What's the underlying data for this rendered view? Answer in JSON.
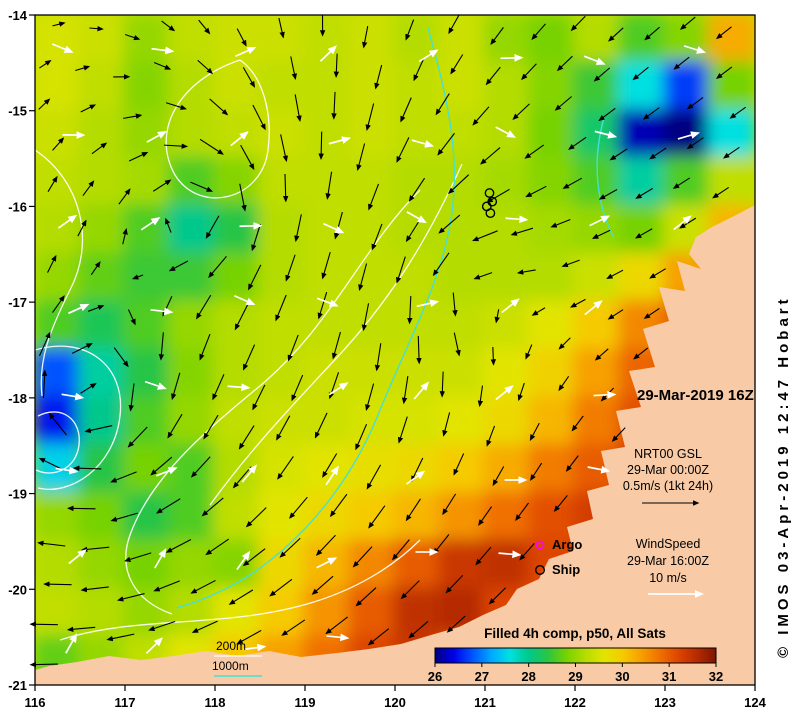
{
  "header": {
    "datetime_label": "29-Mar-2019 16Z"
  },
  "legend": {
    "gsl": {
      "title": "NRT00 GSL",
      "time": "29-Mar 00:00Z",
      "scale": "0.5m/s (1kt 24h)"
    },
    "wind": {
      "title": "WindSpeed",
      "time": "29-Mar 16:00Z",
      "scale": "10 m/s"
    },
    "argo_label": "Argo",
    "ship_label": "Ship",
    "depth_200_label": "200m",
    "depth_1000_label": "1000m"
  },
  "footer": {
    "title": "Filled 4h comp, p50, All Sats"
  },
  "credit": "© IMOS 03-Apr-2019 12:47 Hobart",
  "colors": {
    "land": "#f8cba6",
    "title_navy": "#00008b",
    "argo_magenta": "#ff00ff",
    "contour_1000_cyan": "#45e0d5",
    "contour_200_white": "#ffffff"
  },
  "chart_data": {
    "type": "heatmap",
    "title": "Filled 4h comp, p50, All Sats",
    "datetime": "29-Mar-2019 16Z",
    "x": {
      "range": [
        116,
        124
      ],
      "ticks": [
        "116",
        "117",
        "118",
        "119",
        "120",
        "121",
        "122",
        "123",
        "124"
      ]
    },
    "y": {
      "range": [
        -21,
        -14
      ],
      "ticks": [
        "-14",
        "-15",
        "-16",
        "-17",
        "-18",
        "-19",
        "-20",
        "-21"
      ]
    },
    "colorbar": {
      "ticks": [
        "26",
        "27",
        "28",
        "29",
        "30",
        "31",
        "32"
      ],
      "range": [
        26,
        32
      ],
      "stops": [
        [
          26.0,
          "#000080"
        ],
        [
          26.4,
          "#0000e8"
        ],
        [
          26.8,
          "#0053ff"
        ],
        [
          27.2,
          "#00a8ff"
        ],
        [
          27.6,
          "#00e0e0"
        ],
        [
          28.0,
          "#00c88c"
        ],
        [
          28.4,
          "#28c546"
        ],
        [
          28.8,
          "#76d200"
        ],
        [
          29.2,
          "#b4dc00"
        ],
        [
          29.6,
          "#e2e400"
        ],
        [
          30.0,
          "#f5cb00"
        ],
        [
          30.4,
          "#f7a000"
        ],
        [
          30.8,
          "#f07000"
        ],
        [
          31.2,
          "#dd4500"
        ],
        [
          31.6,
          "#b52a00"
        ],
        [
          32.0,
          "#7d1600"
        ]
      ]
    },
    "grid": {
      "lon_min": 116,
      "lon_max": 124,
      "lat_min": -21,
      "lat_max": -14,
      "ncols": 16,
      "nrows": 14,
      "values": [
        [
          29.5,
          29.4,
          29.0,
          29.3,
          29.4,
          29.4,
          29.3,
          29.4,
          29.2,
          29.4,
          29.0,
          28.8,
          29.2,
          28.6,
          28.9,
          30.3
        ],
        [
          29.5,
          29.3,
          28.9,
          29.2,
          29.4,
          29.3,
          29.3,
          29.4,
          29.3,
          29.4,
          29.2,
          28.9,
          28.5,
          27.6,
          26.7,
          28.8
        ],
        [
          29.4,
          29.2,
          29.0,
          29.2,
          29.3,
          29.4,
          29.3,
          29.4,
          29.3,
          29.3,
          29.2,
          28.8,
          28.2,
          26.2,
          26.0,
          27.6
        ],
        [
          29.3,
          29.2,
          29.1,
          28.6,
          28.9,
          29.3,
          29.3,
          29.3,
          29.2,
          29.2,
          29.1,
          28.9,
          28.6,
          27.9,
          28.6,
          29.3
        ],
        [
          29.2,
          29.0,
          28.6,
          28.0,
          28.4,
          29.2,
          29.3,
          29.3,
          29.2,
          29.2,
          29.2,
          29.1,
          29.0,
          28.8,
          29.4,
          30.2
        ],
        [
          29.0,
          28.7,
          28.5,
          28.5,
          28.8,
          29.2,
          29.3,
          29.3,
          29.3,
          29.2,
          29.2,
          29.2,
          29.4,
          29.8,
          30.4,
          30.9
        ],
        [
          28.6,
          28.3,
          28.6,
          29.0,
          29.2,
          29.3,
          29.3,
          29.3,
          29.3,
          29.3,
          29.4,
          29.6,
          30.0,
          30.6,
          31.0,
          31.1
        ],
        [
          26.8,
          27.9,
          28.4,
          28.9,
          29.2,
          29.3,
          29.4,
          29.4,
          29.4,
          29.4,
          29.6,
          29.9,
          30.4,
          30.9,
          31.2,
          31.2
        ],
        [
          26.5,
          28.0,
          28.6,
          29.0,
          29.3,
          29.4,
          29.4,
          29.5,
          29.5,
          29.6,
          29.8,
          30.2,
          30.7,
          31.1,
          31.3,
          31.3
        ],
        [
          27.5,
          28.4,
          28.8,
          28.6,
          29.2,
          29.5,
          29.6,
          29.7,
          29.8,
          30.0,
          30.3,
          30.7,
          31.0,
          31.3,
          31.3,
          31.3
        ],
        [
          29.0,
          28.8,
          28.4,
          28.6,
          29.3,
          29.6,
          29.8,
          30.0,
          30.2,
          30.5,
          30.8,
          31.1,
          31.3,
          31.3,
          31.3,
          31.3
        ],
        [
          29.2,
          29.0,
          28.8,
          29.0,
          28.9,
          29.8,
          30.2,
          30.6,
          31.0,
          31.4,
          31.5,
          31.2,
          31.2,
          31.2,
          31.2,
          31.2
        ],
        [
          29.3,
          29.2,
          29.0,
          29.2,
          29.6,
          30.0,
          30.5,
          31.0,
          31.5,
          31.6,
          31.2,
          31.0,
          31.0,
          31.0,
          31.0,
          31.0
        ],
        [
          28.7,
          29.0,
          29.3,
          29.6,
          30.0,
          30.4,
          30.8,
          31.2,
          31.4,
          31.0,
          31.0,
          31.0,
          31.0,
          31.0,
          31.0,
          31.0
        ]
      ]
    },
    "ship_positions": [
      [
        121.05,
        -15.86
      ],
      [
        121.08,
        -15.95
      ],
      [
        121.02,
        -16.0
      ],
      [
        121.06,
        -16.07
      ]
    ]
  }
}
